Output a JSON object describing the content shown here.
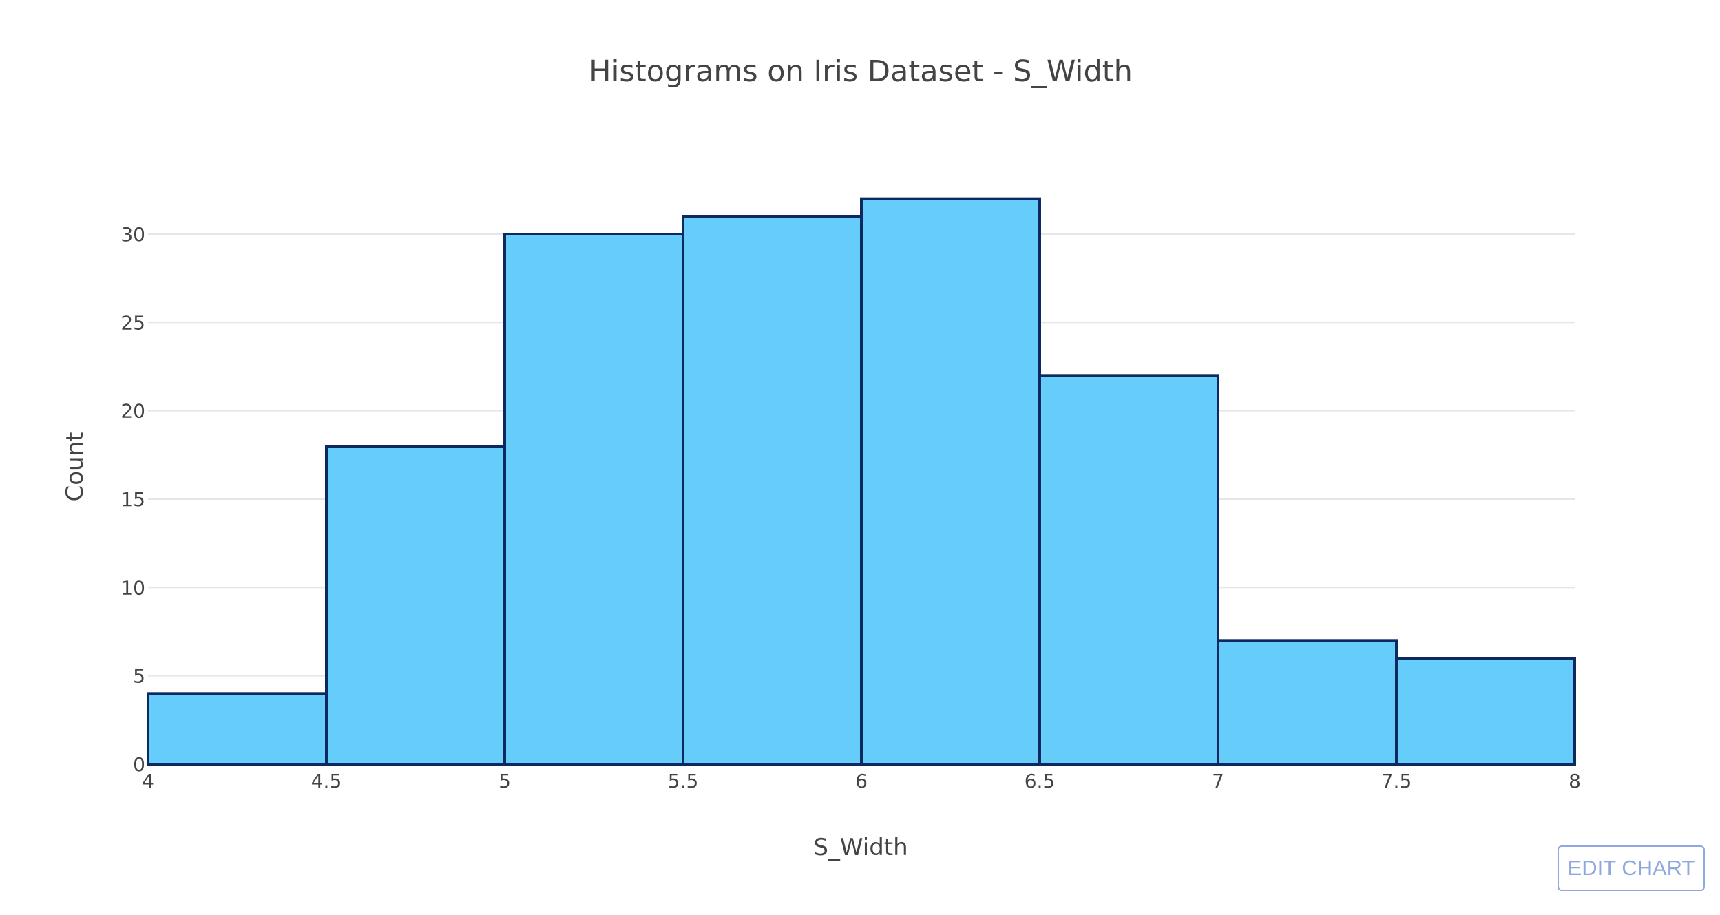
{
  "chart_data": {
    "type": "bar",
    "title": "Histograms on Iris Dataset - S_Width",
    "xlabel": "S_Width",
    "ylabel": "Count",
    "bin_edges": [
      4,
      4.5,
      5,
      5.5,
      6,
      6.5,
      7,
      7.5,
      8
    ],
    "values": [
      4,
      18,
      30,
      31,
      32,
      22,
      7,
      6
    ],
    "xlim": [
      4,
      8
    ],
    "ylim": [
      0,
      32
    ],
    "x_ticks": [
      "4",
      "4.5",
      "5",
      "5.5",
      "6",
      "6.5",
      "7",
      "7.5",
      "8"
    ],
    "y_ticks": [
      "0",
      "5",
      "10",
      "15",
      "20",
      "25",
      "30"
    ],
    "grid": true,
    "bar_fill": "#66ccfa",
    "bar_outline": "#0d2a60"
  },
  "edit_button": {
    "label": "EDIT CHART"
  }
}
